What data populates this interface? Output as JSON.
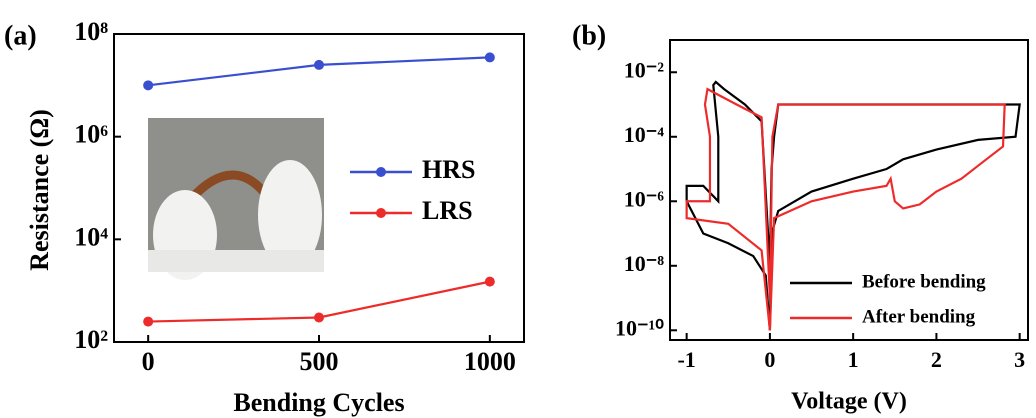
{
  "chart_data": [
    {
      "type": "line",
      "panel_label": "(a)",
      "xlabel": "Bending Cycles",
      "ylabel": "Resistance (Ω)",
      "x": [
        0,
        500,
        1000
      ],
      "series": [
        {
          "name": "HRS",
          "color": "#3a4fd0",
          "values": [
            10000000,
            25000000,
            35000000
          ]
        },
        {
          "name": "LRS",
          "color": "#ee2b2b",
          "values": [
            250,
            300,
            1500
          ]
        }
      ],
      "xlim": [
        -100,
        1100
      ],
      "xticks": [
        0,
        500,
        1000
      ],
      "ylim": [
        100,
        100000000
      ],
      "log_y": true,
      "yticks": [
        {
          "value": 100,
          "label": "10²"
        },
        {
          "value": 10000,
          "label": "10⁴"
        },
        {
          "value": 1000000,
          "label": "10⁶"
        },
        {
          "value": 100000000,
          "label": "10⁸"
        }
      ],
      "markers": true,
      "legend": "right"
    },
    {
      "type": "line",
      "panel_label": "(b)",
      "xlabel": "Voltage (V)",
      "series": [
        {
          "name": "Before bending",
          "color": "#000000",
          "x": [
            0,
            0.02,
            0.1,
            0.5,
            1.0,
            1.4,
            1.6,
            2.0,
            2.5,
            2.95,
            3.0,
            2.0,
            1.0,
            0.1,
            0.05,
            0.02,
            0,
            -0.1,
            -0.3,
            -0.55,
            -0.65,
            -0.68,
            -0.62,
            -0.62,
            -0.8,
            -1.0,
            -1.0,
            -0.8,
            -0.5,
            -0.2,
            -0.05,
            0
          ],
          "values": [
            1e-10,
            1e-07,
            5e-07,
            2e-06,
            5e-06,
            1e-05,
            2e-05,
            4e-05,
            8e-05,
            0.0001,
            0.001,
            0.001,
            0.001,
            0.001,
            0.0001,
            1e-05,
            1e-08,
            0.0003,
            0.001,
            0.003,
            0.005,
            0.004,
            0.0001,
            1e-06,
            3e-06,
            3e-06,
            1e-06,
            1e-07,
            5e-08,
            2e-08,
            5e-09,
            1e-10
          ]
        },
        {
          "name": "After bending",
          "color": "#ee2b2b",
          "x": [
            0,
            0.05,
            0.5,
            1.0,
            1.4,
            1.45,
            1.5,
            1.6,
            1.8,
            2.0,
            2.3,
            2.6,
            2.8,
            2.82,
            2.0,
            1.0,
            0.1,
            0.03,
            0,
            -0.1,
            -0.4,
            -0.75,
            -0.78,
            -0.72,
            -0.72,
            -1.0,
            -1.0,
            -0.5,
            -0.1,
            0
          ],
          "values": [
            1e-10,
            3e-07,
            1e-06,
            2e-06,
            3e-06,
            5e-06,
            1e-06,
            6e-07,
            8e-07,
            2e-06,
            5e-06,
            2e-05,
            5e-05,
            0.001,
            0.001,
            0.001,
            0.001,
            0.0001,
            1e-09,
            0.0004,
            0.001,
            0.003,
            0.001,
            0.0001,
            1e-06,
            1e-06,
            3e-07,
            2e-07,
            3e-08,
            1e-10
          ]
        }
      ],
      "xlim": [
        -1.2,
        3.1
      ],
      "xticks": [
        -1,
        0,
        1,
        2,
        3
      ],
      "ylim": [
        5e-11,
        0.1
      ],
      "log_y": true,
      "yticks": [
        {
          "value": 1e-10,
          "label": "10⁻¹⁰"
        },
        {
          "value": 1e-08,
          "label": "10⁻⁸"
        },
        {
          "value": 1e-06,
          "label": "10⁻⁶"
        },
        {
          "value": 0.0001,
          "label": "10⁻⁴"
        },
        {
          "value": 0.01,
          "label": "10⁻²"
        }
      ],
      "markers": false,
      "legend": "lower right"
    }
  ]
}
